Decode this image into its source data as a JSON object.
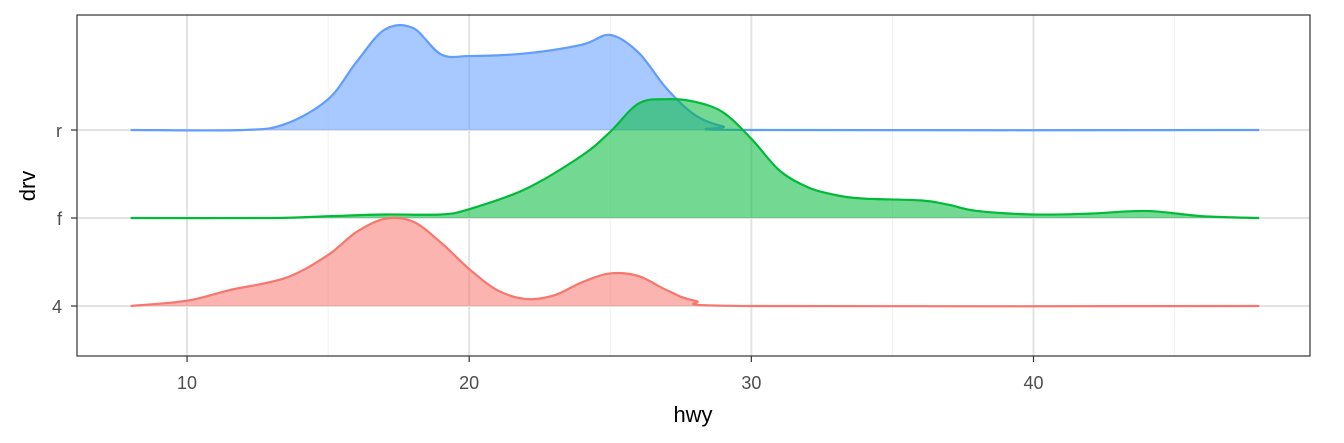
{
  "chart_data": {
    "type": "ridgeline",
    "title": "",
    "xlabel": "hwy",
    "ylabel": "drv",
    "xlim": [
      6.1,
      49.8
    ],
    "x_ticks": [
      10,
      20,
      30,
      40
    ],
    "categories": [
      "4",
      "f",
      "r"
    ],
    "grid": true,
    "series": [
      {
        "name": "4",
        "color": "#F8766D",
        "points": [
          [
            8,
            0.0
          ],
          [
            10,
            0.06
          ],
          [
            11.5,
            0.18
          ],
          [
            13.5,
            0.32
          ],
          [
            15,
            0.58
          ],
          [
            16,
            0.84
          ],
          [
            17,
            0.99
          ],
          [
            18,
            0.96
          ],
          [
            19,
            0.72
          ],
          [
            20,
            0.42
          ],
          [
            21,
            0.18
          ],
          [
            22,
            0.08
          ],
          [
            23,
            0.12
          ],
          [
            24,
            0.27
          ],
          [
            25,
            0.37
          ],
          [
            26,
            0.34
          ],
          [
            27,
            0.18
          ],
          [
            28,
            0.06
          ],
          [
            30,
            0.0
          ],
          [
            48,
            0.0
          ]
        ]
      },
      {
        "name": "f",
        "color": "#00BA38",
        "points": [
          [
            8,
            0.0
          ],
          [
            13,
            0.0
          ],
          [
            15,
            0.02
          ],
          [
            17,
            0.04
          ],
          [
            19,
            0.04
          ],
          [
            20,
            0.1
          ],
          [
            22,
            0.33
          ],
          [
            24,
            0.71
          ],
          [
            25,
            0.98
          ],
          [
            26,
            1.3
          ],
          [
            27,
            1.35
          ],
          [
            28,
            1.32
          ],
          [
            29,
            1.2
          ],
          [
            30,
            0.9
          ],
          [
            31,
            0.54
          ],
          [
            32,
            0.35
          ],
          [
            33,
            0.26
          ],
          [
            34,
            0.22
          ],
          [
            36,
            0.2
          ],
          [
            37,
            0.15
          ],
          [
            38,
            0.08
          ],
          [
            40,
            0.04
          ],
          [
            42,
            0.05
          ],
          [
            44,
            0.08
          ],
          [
            46,
            0.02
          ],
          [
            48,
            0.0
          ]
        ]
      },
      {
        "name": "r",
        "color": "#619CFF",
        "points": [
          [
            8,
            0.0
          ],
          [
            12,
            0.0
          ],
          [
            13.5,
            0.07
          ],
          [
            15,
            0.35
          ],
          [
            16,
            0.77
          ],
          [
            17,
            1.14
          ],
          [
            18,
            1.16
          ],
          [
            19,
            0.86
          ],
          [
            20,
            0.84
          ],
          [
            22,
            0.87
          ],
          [
            24,
            0.97
          ],
          [
            25,
            1.08
          ],
          [
            26,
            0.88
          ],
          [
            27,
            0.47
          ],
          [
            28,
            0.17
          ],
          [
            29,
            0.04
          ],
          [
            30,
            0.0
          ],
          [
            48,
            0.0
          ]
        ]
      }
    ]
  }
}
